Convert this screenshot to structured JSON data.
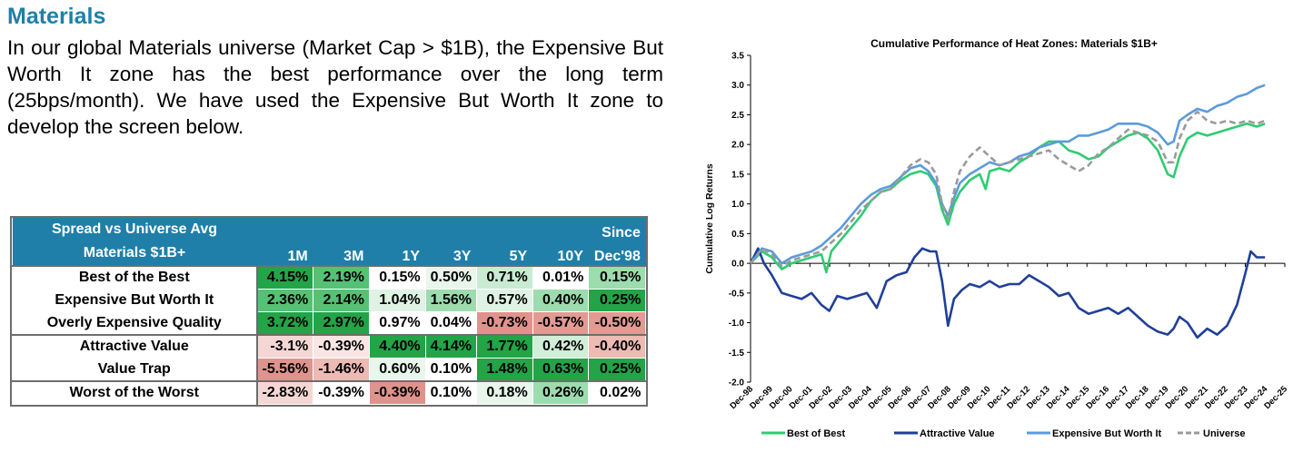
{
  "heading": "Materials",
  "paragraph": "In our global Materials universe (Market Cap > $1B), the Expensive But Worth It zone has the best performance over the long term (25bps/month). We have used the Expensive But Worth It zone to develop the screen below.",
  "table": {
    "header_row_label_line1": "Spread vs Universe Avg",
    "header_row_label_line2": "Materials $1B+",
    "since_line1": "Since",
    "columns": [
      "1M",
      "3M",
      "1Y",
      "3Y",
      "5Y",
      "10Y",
      "Dec'98"
    ],
    "rows": [
      {
        "label": "Best of the Best",
        "values": [
          "4.15%",
          "2.19%",
          "0.15%",
          "0.50%",
          "0.71%",
          "0.01%",
          "0.15%"
        ],
        "colors": [
          "#22a447",
          "#55c174",
          "#ffffff",
          "#e8f6ec",
          "#c9ebd3",
          "#ffffff",
          "#9cdcae"
        ]
      },
      {
        "label": "Expensive But Worth It",
        "values": [
          "2.36%",
          "2.14%",
          "1.04%",
          "1.56%",
          "0.57%",
          "0.40%",
          "0.25%"
        ],
        "colors": [
          "#55c174",
          "#55c174",
          "#dff3e5",
          "#9cdcae",
          "#dff3e5",
          "#9cdcae",
          "#22a447"
        ]
      },
      {
        "label": "Overly Expensive Quality",
        "values": [
          "3.72%",
          "2.97%",
          "0.97%",
          "0.04%",
          "-0.73%",
          "-0.57%",
          "-0.50%"
        ],
        "colors": [
          "#22a447",
          "#22a447",
          "#ffffff",
          "#ffffff",
          "#e0938c",
          "#e29a93",
          "#e29a93"
        ]
      },
      {
        "label": "Attractive Value",
        "values": [
          "-3.1%",
          "-0.39%",
          "4.40%",
          "4.14%",
          "1.77%",
          "0.42%",
          "-0.40%"
        ],
        "colors": [
          "#f4d7d4",
          "#f9e6e4",
          "#22a447",
          "#22a447",
          "#22a447",
          "#d1eed9",
          "#edbab4"
        ]
      },
      {
        "label": "Value Trap",
        "values": [
          "-5.56%",
          "-1.46%",
          "0.60%",
          "0.10%",
          "1.48%",
          "0.63%",
          "0.25%"
        ],
        "colors": [
          "#e0938c",
          "#edbab4",
          "#e8f6ec",
          "#ffffff",
          "#22a447",
          "#22a447",
          "#22a447"
        ]
      },
      {
        "label": "Worst of the Worst",
        "values": [
          "-2.83%",
          "-0.39%",
          "-0.39%",
          "0.10%",
          "0.18%",
          "0.26%",
          "0.02%"
        ],
        "colors": [
          "#f4d7d4",
          "#ffffff",
          "#e0938c",
          "#ffffff",
          "#e8f6ec",
          "#9cdcae",
          "#ffffff"
        ]
      }
    ]
  },
  "chart_data": {
    "type": "line",
    "title": "Cumulative Performance of Heat Zones: Materials $1B+",
    "ylabel": "Cumulative Log Returns",
    "xlabel": "",
    "ylim": [
      -2.0,
      3.5
    ],
    "yticks": [
      "3.5",
      "3.0",
      "2.5",
      "2.0",
      "1.5",
      "1.0",
      "0.5",
      "0.0",
      "-0.5",
      "-1.0",
      "-1.5",
      "-2.0"
    ],
    "xticks": [
      "Dec-98",
      "Dec-99",
      "Dec-00",
      "Dec-01",
      "Dec-02",
      "Dec-03",
      "Dec-04",
      "Dec-05",
      "Dec-06",
      "Dec-07",
      "Dec-08",
      "Dec-09",
      "Dec-10",
      "Dec-11",
      "Dec-12",
      "Dec-13",
      "Dec-14",
      "Dec-15",
      "Dec-16",
      "Dec-17",
      "Dec-18",
      "Dec-19",
      "Dec-20",
      "Dec-21",
      "Dec-22",
      "Dec-23",
      "Dec-24",
      "Dec-25"
    ],
    "grid": false,
    "legend": "bottom",
    "series": [
      {
        "name": "Best of Best",
        "color": "#2ecc71",
        "dash": "",
        "points": [
          [
            1998.92,
            0.0
          ],
          [
            1999.5,
            0.2
          ],
          [
            2000.0,
            0.1
          ],
          [
            2000.5,
            -0.1
          ],
          [
            2001.0,
            0.0
          ],
          [
            2001.5,
            0.05
          ],
          [
            2002.0,
            0.1
          ],
          [
            2002.5,
            0.15
          ],
          [
            2002.75,
            -0.15
          ],
          [
            2003.0,
            0.2
          ],
          [
            2003.5,
            0.4
          ],
          [
            2004.0,
            0.6
          ],
          [
            2004.5,
            0.8
          ],
          [
            2005.0,
            1.05
          ],
          [
            2005.5,
            1.2
          ],
          [
            2006.0,
            1.25
          ],
          [
            2006.5,
            1.4
          ],
          [
            2007.0,
            1.5
          ],
          [
            2007.5,
            1.55
          ],
          [
            2007.9,
            1.5
          ],
          [
            2008.3,
            1.3
          ],
          [
            2008.6,
            0.9
          ],
          [
            2008.9,
            0.65
          ],
          [
            2009.2,
            1.0
          ],
          [
            2009.5,
            1.2
          ],
          [
            2010.0,
            1.4
          ],
          [
            2010.5,
            1.5
          ],
          [
            2010.8,
            1.25
          ],
          [
            2011.0,
            1.55
          ],
          [
            2011.5,
            1.6
          ],
          [
            2012.0,
            1.55
          ],
          [
            2012.5,
            1.7
          ],
          [
            2013.0,
            1.8
          ],
          [
            2013.5,
            1.95
          ],
          [
            2014.0,
            2.05
          ],
          [
            2014.5,
            2.05
          ],
          [
            2015.0,
            1.9
          ],
          [
            2015.5,
            1.85
          ],
          [
            2016.0,
            1.75
          ],
          [
            2016.5,
            1.8
          ],
          [
            2017.0,
            1.95
          ],
          [
            2017.5,
            2.05
          ],
          [
            2018.0,
            2.15
          ],
          [
            2018.5,
            2.2
          ],
          [
            2019.0,
            2.1
          ],
          [
            2019.5,
            1.9
          ],
          [
            2020.0,
            1.5
          ],
          [
            2020.3,
            1.45
          ],
          [
            2020.6,
            1.8
          ],
          [
            2021.0,
            2.1
          ],
          [
            2021.5,
            2.2
          ],
          [
            2022.0,
            2.15
          ],
          [
            2022.5,
            2.2
          ],
          [
            2023.0,
            2.25
          ],
          [
            2023.5,
            2.3
          ],
          [
            2024.0,
            2.35
          ],
          [
            2024.5,
            2.3
          ],
          [
            2024.92,
            2.35
          ]
        ]
      },
      {
        "name": "Attractive Value",
        "color": "#1f3f99",
        "dash": "",
        "points": [
          [
            1998.92,
            0.0
          ],
          [
            1999.3,
            0.25
          ],
          [
            1999.6,
            0.0
          ],
          [
            2000.0,
            -0.2
          ],
          [
            2000.5,
            -0.5
          ],
          [
            2001.0,
            -0.55
          ],
          [
            2001.5,
            -0.6
          ],
          [
            2002.0,
            -0.5
          ],
          [
            2002.5,
            -0.7
          ],
          [
            2002.9,
            -0.8
          ],
          [
            2003.3,
            -0.55
          ],
          [
            2003.8,
            -0.6
          ],
          [
            2004.3,
            -0.55
          ],
          [
            2004.8,
            -0.5
          ],
          [
            2005.3,
            -0.75
          ],
          [
            2005.8,
            -0.3
          ],
          [
            2006.3,
            -0.2
          ],
          [
            2006.8,
            -0.15
          ],
          [
            2007.2,
            0.1
          ],
          [
            2007.6,
            0.25
          ],
          [
            2008.0,
            0.2
          ],
          [
            2008.3,
            0.2
          ],
          [
            2008.6,
            -0.3
          ],
          [
            2008.9,
            -1.05
          ],
          [
            2009.2,
            -0.6
          ],
          [
            2009.6,
            -0.45
          ],
          [
            2010.0,
            -0.35
          ],
          [
            2010.5,
            -0.4
          ],
          [
            2011.0,
            -0.3
          ],
          [
            2011.5,
            -0.4
          ],
          [
            2012.0,
            -0.35
          ],
          [
            2012.5,
            -0.35
          ],
          [
            2013.0,
            -0.2
          ],
          [
            2013.5,
            -0.3
          ],
          [
            2014.0,
            -0.4
          ],
          [
            2014.5,
            -0.55
          ],
          [
            2015.0,
            -0.5
          ],
          [
            2015.5,
            -0.75
          ],
          [
            2016.0,
            -0.85
          ],
          [
            2016.5,
            -0.8
          ],
          [
            2017.0,
            -0.75
          ],
          [
            2017.5,
            -0.85
          ],
          [
            2018.0,
            -0.75
          ],
          [
            2018.5,
            -0.9
          ],
          [
            2019.0,
            -1.05
          ],
          [
            2019.5,
            -1.15
          ],
          [
            2020.0,
            -1.2
          ],
          [
            2020.3,
            -1.1
          ],
          [
            2020.6,
            -0.9
          ],
          [
            2021.0,
            -1.0
          ],
          [
            2021.5,
            -1.25
          ],
          [
            2022.0,
            -1.1
          ],
          [
            2022.5,
            -1.2
          ],
          [
            2023.0,
            -1.05
          ],
          [
            2023.5,
            -0.7
          ],
          [
            2023.9,
            -0.2
          ],
          [
            2024.2,
            0.2
          ],
          [
            2024.5,
            0.1
          ],
          [
            2024.92,
            0.1
          ]
        ]
      },
      {
        "name": "Expensive But Worth It",
        "color": "#5b9bdc",
        "dash": "",
        "points": [
          [
            1998.92,
            0.0
          ],
          [
            1999.5,
            0.25
          ],
          [
            2000.0,
            0.2
          ],
          [
            2000.5,
            0.0
          ],
          [
            2001.0,
            0.1
          ],
          [
            2001.5,
            0.15
          ],
          [
            2002.0,
            0.2
          ],
          [
            2002.5,
            0.3
          ],
          [
            2003.0,
            0.45
          ],
          [
            2003.5,
            0.6
          ],
          [
            2004.0,
            0.8
          ],
          [
            2004.5,
            1.0
          ],
          [
            2005.0,
            1.15
          ],
          [
            2005.5,
            1.25
          ],
          [
            2006.0,
            1.3
          ],
          [
            2006.5,
            1.45
          ],
          [
            2007.0,
            1.6
          ],
          [
            2007.5,
            1.65
          ],
          [
            2007.9,
            1.55
          ],
          [
            2008.3,
            1.35
          ],
          [
            2008.6,
            1.0
          ],
          [
            2008.9,
            0.8
          ],
          [
            2009.2,
            1.1
          ],
          [
            2009.5,
            1.35
          ],
          [
            2010.0,
            1.5
          ],
          [
            2010.5,
            1.6
          ],
          [
            2011.0,
            1.7
          ],
          [
            2011.5,
            1.65
          ],
          [
            2012.0,
            1.7
          ],
          [
            2012.5,
            1.8
          ],
          [
            2013.0,
            1.85
          ],
          [
            2013.5,
            1.95
          ],
          [
            2014.0,
            2.0
          ],
          [
            2014.5,
            2.05
          ],
          [
            2015.0,
            2.05
          ],
          [
            2015.5,
            2.15
          ],
          [
            2016.0,
            2.15
          ],
          [
            2016.5,
            2.2
          ],
          [
            2017.0,
            2.25
          ],
          [
            2017.5,
            2.35
          ],
          [
            2018.0,
            2.35
          ],
          [
            2018.5,
            2.35
          ],
          [
            2019.0,
            2.3
          ],
          [
            2019.5,
            2.2
          ],
          [
            2020.0,
            2.0
          ],
          [
            2020.3,
            2.05
          ],
          [
            2020.6,
            2.4
          ],
          [
            2021.0,
            2.5
          ],
          [
            2021.5,
            2.6
          ],
          [
            2022.0,
            2.55
          ],
          [
            2022.5,
            2.65
          ],
          [
            2023.0,
            2.7
          ],
          [
            2023.5,
            2.8
          ],
          [
            2024.0,
            2.85
          ],
          [
            2024.5,
            2.95
          ],
          [
            2024.92,
            3.0
          ]
        ]
      },
      {
        "name": "Universe",
        "color": "#9a9a9a",
        "dash": "7,4",
        "points": [
          [
            1998.92,
            0.0
          ],
          [
            1999.5,
            0.25
          ],
          [
            2000.0,
            0.15
          ],
          [
            2000.5,
            -0.05
          ],
          [
            2001.0,
            0.05
          ],
          [
            2001.5,
            0.1
          ],
          [
            2002.0,
            0.15
          ],
          [
            2002.5,
            0.2
          ],
          [
            2003.0,
            0.35
          ],
          [
            2003.5,
            0.5
          ],
          [
            2004.0,
            0.7
          ],
          [
            2004.5,
            0.9
          ],
          [
            2005.0,
            1.05
          ],
          [
            2005.5,
            1.2
          ],
          [
            2006.0,
            1.25
          ],
          [
            2006.5,
            1.45
          ],
          [
            2007.0,
            1.65
          ],
          [
            2007.5,
            1.75
          ],
          [
            2007.9,
            1.7
          ],
          [
            2008.3,
            1.5
          ],
          [
            2008.6,
            1.0
          ],
          [
            2008.9,
            0.75
          ],
          [
            2009.2,
            1.2
          ],
          [
            2009.5,
            1.55
          ],
          [
            2010.0,
            1.8
          ],
          [
            2010.5,
            1.95
          ],
          [
            2011.0,
            1.8
          ],
          [
            2011.5,
            1.65
          ],
          [
            2012.0,
            1.7
          ],
          [
            2012.5,
            1.75
          ],
          [
            2013.0,
            1.8
          ],
          [
            2013.5,
            1.85
          ],
          [
            2014.0,
            1.9
          ],
          [
            2014.5,
            1.75
          ],
          [
            2015.0,
            1.65
          ],
          [
            2015.5,
            1.55
          ],
          [
            2016.0,
            1.65
          ],
          [
            2016.5,
            1.85
          ],
          [
            2017.0,
            1.95
          ],
          [
            2017.5,
            2.1
          ],
          [
            2018.0,
            2.25
          ],
          [
            2018.5,
            2.2
          ],
          [
            2019.0,
            2.15
          ],
          [
            2019.5,
            2.05
          ],
          [
            2020.0,
            1.7
          ],
          [
            2020.3,
            1.7
          ],
          [
            2020.6,
            2.1
          ],
          [
            2021.0,
            2.4
          ],
          [
            2021.5,
            2.55
          ],
          [
            2022.0,
            2.4
          ],
          [
            2022.5,
            2.35
          ],
          [
            2023.0,
            2.4
          ],
          [
            2023.5,
            2.35
          ],
          [
            2024.0,
            2.4
          ],
          [
            2024.5,
            2.35
          ],
          [
            2024.92,
            2.4
          ]
        ]
      }
    ]
  }
}
